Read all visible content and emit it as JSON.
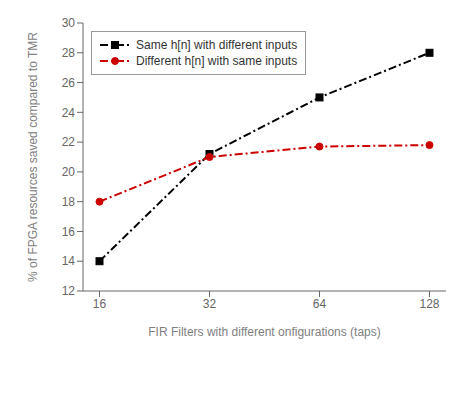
{
  "chart_data": {
    "type": "line",
    "xlabel": "FIR Filters with different onfigurations (taps)",
    "ylabel": "% of FPGA resources saved compared to TMR",
    "x": [
      16,
      32,
      64,
      128
    ],
    "series": [
      {
        "name": "Same h[n] with different inputs",
        "color": "#000000",
        "values": [
          14.0,
          21.2,
          25.0,
          28.0
        ],
        "marker": "square",
        "line_style": "dash-dot"
      },
      {
        "name": "Different h[n] with same inputs",
        "color": "#cc0000",
        "values": [
          18.0,
          21.0,
          21.7,
          21.8
        ],
        "marker": "circle",
        "line_style": "dash-dot"
      }
    ],
    "xlim": [
      14.42,
      142.025
    ],
    "xticks": [
      16,
      32,
      64,
      128
    ],
    "ylim": [
      12,
      30
    ],
    "yticks": [
      12,
      14,
      16,
      18,
      20,
      22,
      24,
      26,
      28,
      30
    ],
    "log": "x",
    "legend": "upper left",
    "grid": false
  }
}
